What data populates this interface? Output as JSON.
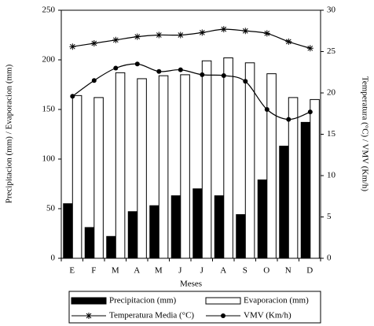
{
  "chart_data": {
    "type": "bar_line",
    "x_label": "Meses",
    "y_label": "Precipitacion (mm) / Evaporacion (mm)",
    "y2_label": "Temperatura (°C) / VMV (Km/h)",
    "categories": [
      "E",
      "F",
      "M",
      "A",
      "M",
      "J",
      "J",
      "A",
      "S",
      "O",
      "N",
      "D"
    ],
    "ylim": [
      0,
      250
    ],
    "yticks": [
      0,
      50,
      100,
      150,
      200,
      250
    ],
    "y2lim": [
      0,
      30
    ],
    "y2ticks": [
      0,
      5,
      10,
      15,
      20,
      25,
      30
    ],
    "legend": "bottom",
    "series": [
      {
        "name": "Precipitacion (mm)",
        "kind": "bar",
        "color": "#000000",
        "values": [
          55,
          31,
          22,
          47,
          53,
          63,
          70,
          63,
          44,
          79,
          113,
          137
        ]
      },
      {
        "name": "Evaporacion (mm)",
        "kind": "bar",
        "color": "#ffffff",
        "values": [
          164,
          162,
          187,
          181,
          184,
          185,
          199,
          202,
          197,
          186,
          162,
          160
        ]
      },
      {
        "name": "Temperatura Media (°C)",
        "kind": "line",
        "marker": "star",
        "axis": "y2",
        "color": "#000000",
        "values": [
          25.6,
          26.0,
          26.4,
          26.8,
          27.0,
          27.0,
          27.3,
          27.7,
          27.5,
          27.2,
          26.2,
          25.4
        ]
      },
      {
        "name": "VMV (Km/h)",
        "kind": "line",
        "marker": "circle",
        "axis": "y2",
        "color": "#000000",
        "values": [
          19.6,
          21.5,
          23.0,
          23.5,
          22.6,
          22.8,
          22.2,
          22.1,
          21.4,
          18.0,
          16.8,
          17.7
        ]
      }
    ]
  }
}
